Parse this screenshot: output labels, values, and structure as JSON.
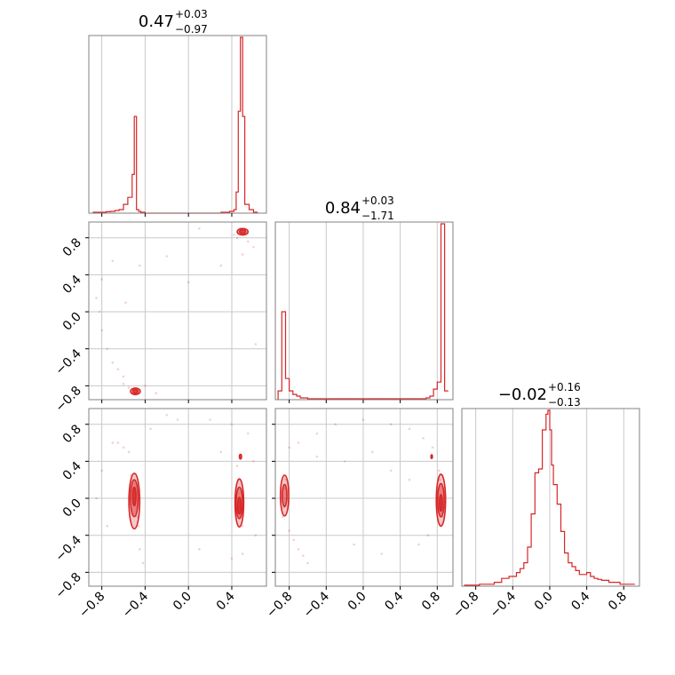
{
  "chart_data": {
    "type": "corner",
    "color": "#d62728",
    "grid": true,
    "parameters": [
      {
        "title_value": "0.47",
        "err_plus": "+0.03",
        "err_minus": "−0.97",
        "range": [
          -0.92,
          0.72
        ]
      },
      {
        "title_value": "0.84",
        "err_plus": "+0.03",
        "err_minus": "−1.71",
        "range": [
          -0.95,
          0.97
        ]
      },
      {
        "title_value": "−0.02",
        "err_plus": "+0.16",
        "err_minus": "−0.13",
        "range": [
          -0.95,
          0.97
        ]
      }
    ],
    "ticks_x": {
      "p0": {
        "values": [
          -0.8,
          -0.4,
          0.0,
          0.4
        ],
        "labels": [
          "−0.8",
          "−0.4",
          "0.0",
          "0.4"
        ]
      },
      "p1": {
        "values": [
          -0.8,
          -0.4,
          0.0,
          0.4,
          0.8
        ],
        "labels": [
          "−0.8",
          "−0.4",
          "0.0",
          "0.4",
          "0.8"
        ]
      },
      "p2": {
        "values": [
          -0.8,
          -0.4,
          0.0,
          0.4,
          0.8
        ],
        "labels": [
          "−0.8",
          "−0.4",
          "0.0",
          "0.4",
          "0.8"
        ]
      }
    },
    "ticks_y": {
      "p1": {
        "values": [
          0.8,
          0.4,
          0.0,
          -0.4,
          -0.8
        ],
        "labels": [
          "0.8",
          "0.4",
          "0.0",
          "−0.4",
          "−0.8"
        ]
      },
      "p2": {
        "values": [
          0.8,
          0.4,
          0.0,
          -0.4,
          -0.8
        ],
        "labels": [
          "0.8",
          "0.4",
          "0.0",
          "−0.4",
          "−0.8"
        ]
      }
    },
    "histograms": {
      "p0": {
        "bin_edges": [
          -0.88,
          -0.84,
          -0.8,
          -0.76,
          -0.72,
          -0.68,
          -0.64,
          -0.6,
          -0.56,
          -0.52,
          -0.5,
          -0.48,
          -0.46,
          -0.44,
          -0.4,
          -0.36,
          -0.3,
          -0.2,
          -0.1,
          0.0,
          0.1,
          0.2,
          0.3,
          0.34,
          0.38,
          0.42,
          0.44,
          0.46,
          0.48,
          0.5,
          0.52,
          0.56,
          0.6,
          0.64
        ],
        "counts": [
          0.005,
          0.005,
          0.005,
          0.008,
          0.01,
          0.015,
          0.02,
          0.05,
          0.09,
          0.22,
          0.55,
          0.02,
          0.01,
          0.005,
          0.0,
          0.0,
          0.0,
          0.0,
          0.0,
          0.0,
          0.0,
          0.0,
          0.005,
          0.005,
          0.01,
          0.02,
          0.12,
          0.58,
          1.0,
          0.55,
          0.05,
          0.02,
          0.005
        ]
      },
      "p1": {
        "bin_edges": [
          -0.92,
          -0.88,
          -0.84,
          -0.8,
          -0.76,
          -0.72,
          -0.68,
          -0.64,
          -0.6,
          -0.5,
          -0.4,
          -0.3,
          -0.2,
          -0.1,
          0.0,
          0.1,
          0.2,
          0.3,
          0.4,
          0.5,
          0.6,
          0.68,
          0.72,
          0.76,
          0.8,
          0.84,
          0.88,
          0.92
        ],
        "counts": [
          0.05,
          0.5,
          0.12,
          0.05,
          0.03,
          0.02,
          0.01,
          0.01,
          0.005,
          0.005,
          0.005,
          0.005,
          0.005,
          0.005,
          0.005,
          0.005,
          0.005,
          0.005,
          0.005,
          0.005,
          0.005,
          0.01,
          0.02,
          0.06,
          0.1,
          1.0,
          0.05
        ]
      },
      "p2": {
        "bin_edges": [
          -0.92,
          -0.84,
          -0.76,
          -0.68,
          -0.6,
          -0.52,
          -0.44,
          -0.36,
          -0.32,
          -0.28,
          -0.24,
          -0.2,
          -0.16,
          -0.12,
          -0.08,
          -0.04,
          -0.02,
          0.0,
          0.02,
          0.04,
          0.08,
          0.12,
          0.16,
          0.2,
          0.24,
          0.28,
          0.32,
          0.36,
          0.4,
          0.44,
          0.48,
          0.52,
          0.56,
          0.6,
          0.64,
          0.68,
          0.72,
          0.76,
          0.8,
          0.84,
          0.88,
          0.92
        ],
        "counts": [
          0.005,
          0.005,
          0.01,
          0.01,
          0.02,
          0.04,
          0.05,
          0.07,
          0.09,
          0.12,
          0.2,
          0.37,
          0.58,
          0.6,
          0.8,
          0.88,
          0.9,
          0.8,
          0.62,
          0.52,
          0.42,
          0.28,
          0.17,
          0.12,
          0.1,
          0.08,
          0.06,
          0.06,
          0.07,
          0.05,
          0.04,
          0.035,
          0.03,
          0.03,
          0.02,
          0.02,
          0.02,
          0.01,
          0.01,
          0.01,
          0.01
        ]
      }
    },
    "samples": {
      "p1_vs_p0": [
        [
          0.47,
          0.88
        ],
        [
          0.49,
          0.87
        ],
        [
          0.5,
          0.86
        ],
        [
          0.46,
          0.85
        ],
        [
          0.48,
          0.9
        ],
        [
          0.52,
          0.84
        ],
        [
          0.45,
          0.8
        ],
        [
          0.55,
          0.76
        ],
        [
          0.6,
          0.7
        ],
        [
          0.5,
          0.62
        ],
        [
          0.42,
          0.83
        ],
        [
          -0.48,
          -0.86
        ],
        [
          -0.5,
          -0.87
        ],
        [
          -0.46,
          -0.85
        ],
        [
          -0.52,
          -0.84
        ],
        [
          -0.55,
          -0.82
        ],
        [
          -0.6,
          -0.78
        ],
        [
          -0.7,
          -0.55
        ],
        [
          -0.75,
          -0.4
        ],
        [
          -0.8,
          -0.2
        ],
        [
          -0.82,
          0.0
        ],
        [
          -0.85,
          0.15
        ],
        [
          -0.8,
          0.35
        ],
        [
          -0.6,
          -0.7
        ],
        [
          -0.4,
          -0.8
        ],
        [
          -0.3,
          -0.88
        ],
        [
          -0.65,
          -0.62
        ],
        [
          -0.58,
          0.1
        ],
        [
          -0.2,
          0.6
        ],
        [
          0.0,
          0.32
        ],
        [
          0.3,
          0.5
        ],
        [
          0.62,
          -0.35
        ],
        [
          -0.7,
          0.55
        ],
        [
          0.1,
          0.9
        ],
        [
          -0.45,
          0.5
        ]
      ],
      "p2_vs_p0": [
        [
          -0.5,
          0.1
        ],
        [
          -0.48,
          -0.1
        ],
        [
          -0.52,
          0.2
        ],
        [
          -0.47,
          -0.2
        ],
        [
          -0.5,
          0.0
        ],
        [
          -0.46,
          -0.3
        ],
        [
          -0.53,
          0.25
        ],
        [
          0.45,
          0.0
        ],
        [
          0.47,
          -0.1
        ],
        [
          0.46,
          0.2
        ],
        [
          0.48,
          -0.2
        ],
        [
          0.45,
          0.35
        ],
        [
          0.5,
          -0.3
        ],
        [
          0.44,
          0.1
        ],
        [
          -0.45,
          -0.55
        ],
        [
          -0.42,
          -0.7
        ],
        [
          -0.55,
          0.5
        ],
        [
          -0.6,
          0.55
        ],
        [
          -0.65,
          0.6
        ],
        [
          -0.7,
          0.6
        ],
        [
          -0.35,
          0.75
        ],
        [
          -0.2,
          0.9
        ],
        [
          -0.1,
          0.85
        ],
        [
          0.2,
          0.85
        ],
        [
          0.4,
          0.8
        ],
        [
          0.55,
          0.7
        ],
        [
          0.6,
          0.4
        ],
        [
          0.62,
          -0.4
        ],
        [
          0.5,
          -0.6
        ],
        [
          0.4,
          -0.65
        ],
        [
          -0.8,
          0.3
        ],
        [
          -0.85,
          0.0
        ],
        [
          -0.75,
          -0.3
        ],
        [
          0.3,
          0.5
        ],
        [
          0.1,
          -0.55
        ]
      ],
      "p2_vs_p1": [
        [
          -0.85,
          0.1
        ],
        [
          -0.86,
          -0.1
        ],
        [
          -0.84,
          0.2
        ],
        [
          -0.87,
          -0.2
        ],
        [
          -0.83,
          0.0
        ],
        [
          0.84,
          0.0
        ],
        [
          0.85,
          -0.1
        ],
        [
          0.83,
          0.2
        ],
        [
          0.86,
          -0.2
        ],
        [
          0.82,
          0.3
        ],
        [
          0.84,
          -0.3
        ],
        [
          0.74,
          0.44
        ],
        [
          -0.8,
          -0.35
        ],
        [
          -0.75,
          -0.45
        ],
        [
          -0.7,
          -0.55
        ],
        [
          -0.65,
          -0.62
        ],
        [
          -0.6,
          -0.7
        ],
        [
          -0.8,
          0.55
        ],
        [
          -0.7,
          0.6
        ],
        [
          -0.5,
          0.7
        ],
        [
          -0.3,
          0.8
        ],
        [
          0.0,
          0.85
        ],
        [
          0.3,
          0.8
        ],
        [
          0.5,
          0.75
        ],
        [
          0.65,
          0.65
        ],
        [
          0.75,
          0.55
        ],
        [
          0.6,
          -0.5
        ],
        [
          0.7,
          -0.4
        ],
        [
          -0.2,
          0.4
        ],
        [
          0.3,
          0.3
        ],
        [
          0.1,
          0.5
        ],
        [
          -0.5,
          0.45
        ],
        [
          0.5,
          0.2
        ],
        [
          -0.1,
          -0.5
        ],
        [
          0.2,
          -0.6
        ]
      ]
    },
    "contours": {
      "p1_vs_p0": [
        {
          "cx": 0.5,
          "cy": 0.865,
          "rx": 0.05,
          "ry": 0.035,
          "level": "outer"
        },
        {
          "cx": 0.5,
          "cy": 0.865,
          "rx": 0.03,
          "ry": 0.02,
          "level": "inner"
        },
        {
          "cx": -0.49,
          "cy": -0.86,
          "rx": 0.045,
          "ry": 0.035,
          "level": "outer"
        },
        {
          "cx": -0.49,
          "cy": -0.86,
          "rx": 0.025,
          "ry": 0.02,
          "level": "inner"
        }
      ],
      "p2_vs_p0": [
        {
          "cx": -0.5,
          "cy": -0.03,
          "rx": 0.05,
          "ry": 0.3,
          "level": "outer"
        },
        {
          "cx": -0.5,
          "cy": 0.0,
          "rx": 0.035,
          "ry": 0.2,
          "level": "mid"
        },
        {
          "cx": -0.5,
          "cy": 0.02,
          "rx": 0.015,
          "ry": 0.1,
          "level": "inner"
        },
        {
          "cx": 0.47,
          "cy": -0.05,
          "rx": 0.04,
          "ry": 0.26,
          "level": "outer"
        },
        {
          "cx": 0.47,
          "cy": -0.05,
          "rx": 0.03,
          "ry": 0.17,
          "level": "mid"
        },
        {
          "cx": 0.47,
          "cy": -0.08,
          "rx": 0.015,
          "ry": 0.09,
          "level": "inner"
        },
        {
          "cx": 0.48,
          "cy": 0.45,
          "rx": 0.01,
          "ry": 0.025,
          "level": "inner"
        }
      ],
      "p2_vs_p1": [
        {
          "cx": -0.85,
          "cy": 0.03,
          "rx": 0.045,
          "ry": 0.22,
          "level": "outer"
        },
        {
          "cx": -0.85,
          "cy": 0.03,
          "rx": 0.025,
          "ry": 0.12,
          "level": "mid"
        },
        {
          "cx": 0.84,
          "cy": -0.02,
          "rx": 0.05,
          "ry": 0.28,
          "level": "outer"
        },
        {
          "cx": 0.84,
          "cy": -0.02,
          "rx": 0.035,
          "ry": 0.18,
          "level": "mid"
        },
        {
          "cx": 0.84,
          "cy": -0.05,
          "rx": 0.015,
          "ry": 0.09,
          "level": "inner"
        },
        {
          "cx": 0.74,
          "cy": 0.45,
          "rx": 0.008,
          "ry": 0.02,
          "level": "inner"
        }
      ]
    }
  }
}
